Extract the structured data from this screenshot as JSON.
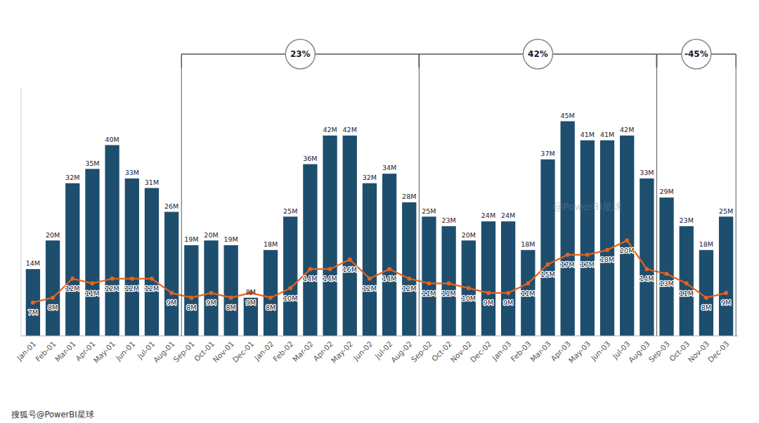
{
  "chart_data": {
    "type": "bar",
    "categories": [
      "Jan-01",
      "Feb-01",
      "Mar-01",
      "Apr-01",
      "May-01",
      "Jun-01",
      "Jul-01",
      "Aug-01",
      "Sep-01",
      "Oct-01",
      "Nov-01",
      "Dec-01",
      "Jan-02",
      "Feb-02",
      "Mar-02",
      "Apr-02",
      "May-02",
      "Jun-02",
      "Jul-02",
      "Aug-02",
      "Sep-02",
      "Oct-02",
      "Nov-02",
      "Dec-02",
      "Jan-03",
      "Feb-03",
      "Mar-03",
      "Apr-03",
      "May-03",
      "Jun-03",
      "Jul-03",
      "Aug-03",
      "Sep-03",
      "Oct-03",
      "Nov-03",
      "Dec-03"
    ],
    "series": [
      {
        "type": "bar",
        "color": "#1d4e6e",
        "values": [
          14,
          20,
          32,
          35,
          40,
          33,
          31,
          26,
          19,
          20,
          19,
          8,
          18,
          25,
          36,
          42,
          42,
          32,
          34,
          28,
          25,
          23,
          20,
          24,
          24,
          18,
          37,
          45,
          41,
          41,
          42,
          33,
          29,
          23,
          18,
          25
        ],
        "value_labels": [
          "14M",
          "20M",
          "32M",
          "35M",
          "40M",
          "33M",
          "31M",
          "26M",
          "19M",
          "20M",
          "19M",
          "8M",
          "18M",
          "25M",
          "36M",
          "42M",
          "42M",
          "32M",
          "34M",
          "28M",
          "25M",
          "23M",
          "20M",
          "24M",
          "24M",
          "18M",
          "37M",
          "45M",
          "41M",
          "41M",
          "42M",
          "33M",
          "29M",
          "23M",
          "18M",
          "25M"
        ]
      },
      {
        "type": "line",
        "color": "#e8621a",
        "marker": "circle",
        "values": [
          7,
          8,
          12,
          11,
          12,
          12,
          12,
          9,
          8,
          9,
          8,
          9,
          8,
          10,
          14,
          14,
          16,
          12,
          14,
          12,
          11,
          11,
          10,
          9,
          9,
          11,
          15,
          17,
          17,
          18,
          20,
          14,
          13,
          11,
          8,
          9
        ],
        "value_labels": [
          "7M",
          "8M",
          "12M",
          "11M",
          "12M",
          "12M",
          "12M",
          "9M",
          "8M",
          "9M",
          "8M",
          "9M",
          "8M",
          "10M",
          "14M",
          "14M",
          "16M",
          "12M",
          "14M",
          "12M",
          "11M",
          "11M",
          "10M",
          "9M",
          "9M",
          "11M",
          "15M",
          "17M",
          "17M",
          "18M",
          "20M",
          "14M",
          "13M",
          "11M",
          "8M",
          "9M"
        ]
      }
    ],
    "ylim": [
      0,
      52
    ],
    "tick_labels": "x",
    "grid": false,
    "data_labels": true,
    "annotations": [
      {
        "text": "23%",
        "from": "Aug-01",
        "to": "Aug-02",
        "at": "Feb-02"
      },
      {
        "text": "42%",
        "from": "Aug-02",
        "to": "Aug-03",
        "at": "Feb-03"
      },
      {
        "text": "-45%",
        "from": "Aug-03",
        "to": "Dec-03",
        "at": "Oct-03"
      }
    ],
    "watermark": "@PowerBI星球",
    "footer": "搜狐号@PowerBI星球"
  }
}
